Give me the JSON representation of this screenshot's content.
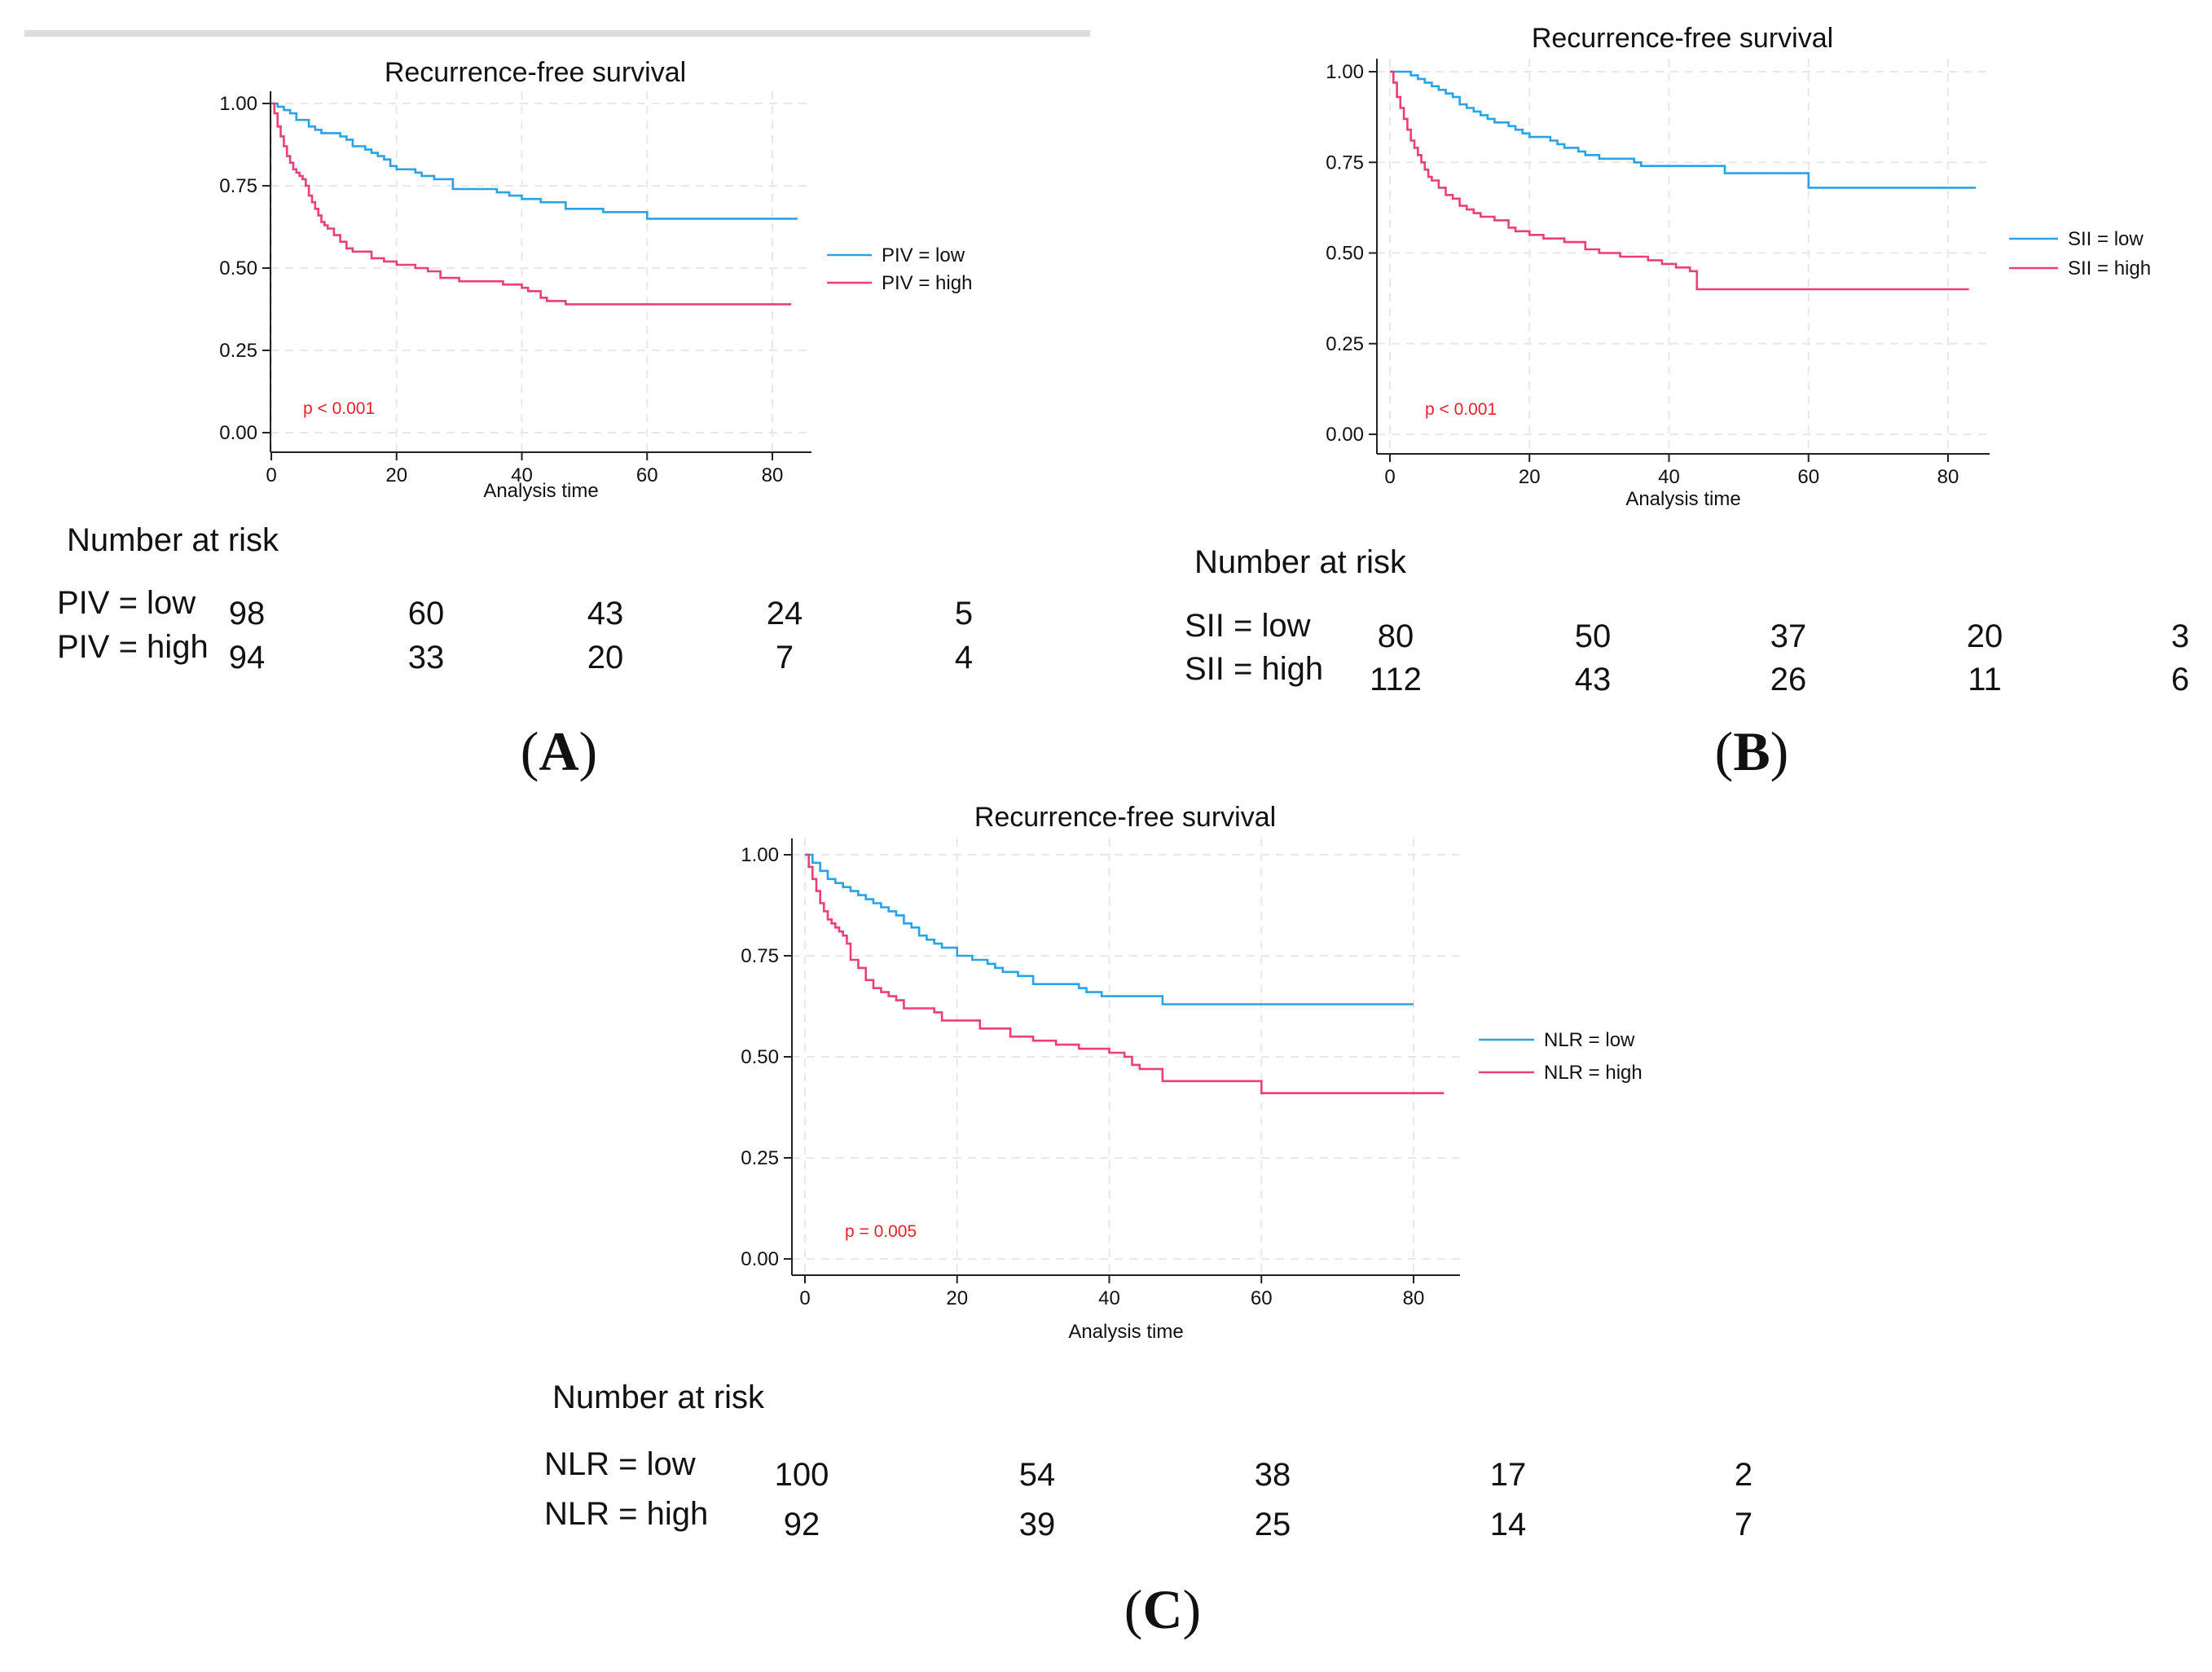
{
  "chart_data": [
    {
      "type": "line",
      "panel": "A",
      "title": "Recurrence-free survival",
      "xlabel": "Analysis time",
      "ylabel": "",
      "xlim": [
        0,
        84
      ],
      "ylim": [
        0,
        1
      ],
      "x_ticks": [
        "0",
        "20",
        "40",
        "60",
        "80"
      ],
      "y_ticks": [
        "0.00",
        "0.25",
        "0.50",
        "0.75",
        "1.00"
      ],
      "grid": true,
      "legend_position": "right",
      "p_value": "p  < 0.001",
      "series": [
        {
          "name": "PIV = low",
          "color": "#29a3e6",
          "x": [
            0,
            1,
            2,
            3,
            4,
            6,
            7,
            8,
            9,
            10,
            11,
            12,
            13,
            15,
            16,
            17,
            18,
            19,
            20,
            22,
            23,
            24,
            26,
            27,
            29,
            33,
            36,
            38,
            40,
            43,
            47,
            53,
            60,
            70,
            80,
            84
          ],
          "y": [
            1.0,
            0.99,
            0.98,
            0.97,
            0.95,
            0.93,
            0.92,
            0.91,
            0.91,
            0.91,
            0.9,
            0.89,
            0.87,
            0.86,
            0.85,
            0.84,
            0.83,
            0.81,
            0.8,
            0.8,
            0.79,
            0.78,
            0.77,
            0.77,
            0.74,
            0.74,
            0.73,
            0.72,
            0.71,
            0.7,
            0.68,
            0.67,
            0.65,
            0.65,
            0.65,
            0.65
          ]
        },
        {
          "name": "PIV = high",
          "color": "#ec3f7a",
          "x": [
            0,
            0.5,
            1,
            1.5,
            2,
            2.5,
            3,
            3.5,
            4,
            4.5,
            5,
            5.5,
            6,
            6.5,
            7,
            7.5,
            8,
            8.5,
            9,
            10,
            11,
            12,
            13,
            15,
            16,
            18,
            20,
            23,
            25,
            27,
            30,
            34,
            37,
            40,
            41,
            43,
            44,
            47,
            50,
            55,
            60,
            70,
            83
          ],
          "y": [
            1.0,
            0.97,
            0.93,
            0.9,
            0.87,
            0.84,
            0.82,
            0.8,
            0.79,
            0.78,
            0.77,
            0.75,
            0.72,
            0.7,
            0.68,
            0.66,
            0.64,
            0.63,
            0.62,
            0.6,
            0.58,
            0.56,
            0.55,
            0.55,
            0.53,
            0.52,
            0.51,
            0.5,
            0.49,
            0.47,
            0.46,
            0.46,
            0.45,
            0.44,
            0.43,
            0.41,
            0.4,
            0.39,
            0.39,
            0.39,
            0.39,
            0.39,
            0.39
          ]
        }
      ],
      "risk_table": {
        "header": "Number at risk",
        "rows": [
          {
            "label": "PIV = low",
            "values": [
              "98",
              "60",
              "43",
              "24",
              "5"
            ]
          },
          {
            "label": "PIV = high",
            "values": [
              "94",
              "33",
              "20",
              "7",
              "4"
            ]
          }
        ]
      },
      "panel_label": {
        "open": "(",
        "letter": "A",
        "close": ")"
      }
    },
    {
      "type": "line",
      "panel": "B",
      "title": "Recurrence-free survival",
      "xlabel": "Analysis time",
      "ylabel": "",
      "xlim": [
        0,
        84
      ],
      "ylim": [
        0,
        1
      ],
      "x_ticks": [
        "0",
        "20",
        "40",
        "60",
        "80"
      ],
      "y_ticks": [
        "0.00",
        "0.25",
        "0.50",
        "0.75",
        "1.00"
      ],
      "grid": true,
      "legend_position": "right",
      "p_value": "p  < 0.001",
      "series": [
        {
          "name": "SII = low",
          "color": "#29a3e6",
          "x": [
            0,
            3,
            4,
            5,
            6,
            7,
            8,
            9,
            10,
            11,
            12,
            13,
            14,
            15,
            17,
            18,
            19,
            20,
            22,
            23,
            24,
            25,
            27,
            28,
            30,
            33,
            35,
            36,
            40,
            44,
            48,
            55,
            60,
            70,
            84
          ],
          "y": [
            1.0,
            0.99,
            0.98,
            0.97,
            0.96,
            0.95,
            0.94,
            0.93,
            0.91,
            0.9,
            0.89,
            0.88,
            0.87,
            0.86,
            0.85,
            0.84,
            0.83,
            0.82,
            0.82,
            0.81,
            0.8,
            0.79,
            0.78,
            0.77,
            0.76,
            0.76,
            0.75,
            0.74,
            0.74,
            0.74,
            0.72,
            0.72,
            0.68,
            0.68,
            0.68
          ]
        },
        {
          "name": "SII = high",
          "color": "#ec3f7a",
          "x": [
            0,
            0.5,
            1,
            1.5,
            2,
            2.5,
            3,
            3.5,
            4,
            4.5,
            5,
            5.5,
            6,
            7,
            8,
            9,
            10,
            11,
            12,
            13,
            15,
            17,
            18,
            20,
            22,
            25,
            28,
            30,
            33,
            35,
            37,
            39,
            41,
            43,
            44,
            48,
            55,
            60,
            70,
            83
          ],
          "y": [
            1.0,
            0.97,
            0.93,
            0.9,
            0.87,
            0.84,
            0.81,
            0.79,
            0.77,
            0.75,
            0.73,
            0.71,
            0.7,
            0.68,
            0.66,
            0.65,
            0.63,
            0.62,
            0.61,
            0.6,
            0.59,
            0.57,
            0.56,
            0.55,
            0.54,
            0.53,
            0.51,
            0.5,
            0.49,
            0.49,
            0.48,
            0.47,
            0.46,
            0.45,
            0.4,
            0.4,
            0.4,
            0.4,
            0.4,
            0.4
          ]
        }
      ],
      "risk_table": {
        "header": "Number at risk",
        "rows": [
          {
            "label": "SII = low",
            "values": [
              "80",
              "50",
              "37",
              "20",
              "3"
            ]
          },
          {
            "label": "SII = high",
            "values": [
              "112",
              "43",
              "26",
              "11",
              "6"
            ]
          }
        ]
      },
      "panel_label": {
        "open": "(",
        "letter": "B",
        "close": ")"
      }
    },
    {
      "type": "line",
      "panel": "C",
      "title": "Recurrence-free survival",
      "xlabel": "Analysis time",
      "ylabel": "",
      "xlim": [
        0,
        84
      ],
      "ylim": [
        0,
        1
      ],
      "x_ticks": [
        "0",
        "20",
        "40",
        "60",
        "80"
      ],
      "y_ticks": [
        "0.00",
        "0.25",
        "0.50",
        "0.75",
        "1.00"
      ],
      "grid": true,
      "legend_position": "right",
      "p_value": "p  = 0.005",
      "series": [
        {
          "name": "NLR = low",
          "color": "#29a3e6",
          "x": [
            0,
            1,
            2,
            3,
            4,
            5,
            6,
            7,
            8,
            9,
            10,
            11,
            12,
            13,
            14,
            15,
            16,
            17,
            18,
            20,
            22,
            24,
            25,
            26,
            28,
            30,
            34,
            36,
            37,
            39,
            41,
            44,
            47,
            52,
            60,
            70,
            80
          ],
          "y": [
            1.0,
            0.98,
            0.96,
            0.94,
            0.93,
            0.92,
            0.91,
            0.9,
            0.89,
            0.88,
            0.87,
            0.86,
            0.85,
            0.83,
            0.82,
            0.8,
            0.79,
            0.78,
            0.77,
            0.75,
            0.74,
            0.73,
            0.72,
            0.71,
            0.7,
            0.68,
            0.68,
            0.67,
            0.66,
            0.65,
            0.65,
            0.65,
            0.63,
            0.63,
            0.63,
            0.63,
            0.63
          ]
        },
        {
          "name": "NLR = high",
          "color": "#ec3f7a",
          "x": [
            0,
            0.5,
            1,
            1.5,
            2,
            2.5,
            3,
            3.5,
            4,
            4.5,
            5,
            5.5,
            6,
            7,
            8,
            9,
            10,
            11,
            12,
            13,
            15,
            17,
            18,
            20,
            23,
            25,
            27,
            30,
            33,
            36,
            39,
            40,
            42,
            43,
            44,
            47,
            52,
            58,
            60,
            70,
            84
          ],
          "y": [
            1.0,
            0.97,
            0.94,
            0.91,
            0.88,
            0.86,
            0.84,
            0.83,
            0.82,
            0.81,
            0.8,
            0.78,
            0.74,
            0.72,
            0.69,
            0.67,
            0.66,
            0.65,
            0.64,
            0.62,
            0.62,
            0.61,
            0.59,
            0.59,
            0.57,
            0.57,
            0.55,
            0.54,
            0.53,
            0.52,
            0.52,
            0.51,
            0.5,
            0.48,
            0.47,
            0.44,
            0.44,
            0.44,
            0.41,
            0.41,
            0.41
          ]
        }
      ],
      "risk_table": {
        "header": "Number at risk",
        "rows": [
          {
            "label": "NLR = low",
            "values": [
              "100",
              "54",
              "38",
              "17",
              "2"
            ]
          },
          {
            "label": "NLR = high",
            "values": [
              "92",
              "39",
              "25",
              "14",
              "7"
            ]
          }
        ]
      },
      "panel_label": {
        "open": "(",
        "letter": "C",
        "close": ")"
      }
    }
  ],
  "colors": {
    "low": "#29a3e6",
    "high": "#ec3f7a",
    "pvalue": "#e8202a",
    "topbar": "#d9d9d9"
  }
}
